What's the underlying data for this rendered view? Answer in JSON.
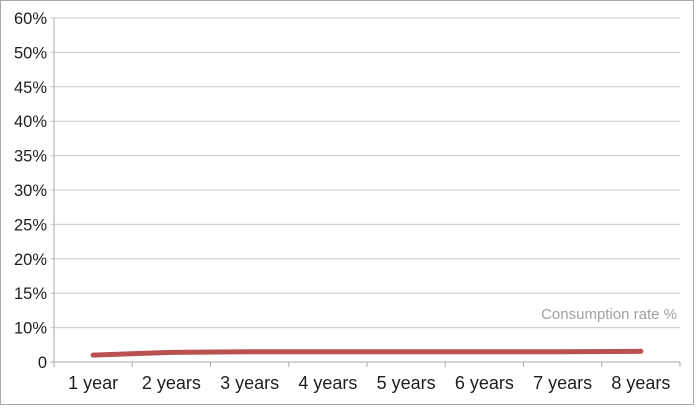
{
  "chart_data": {
    "type": "line",
    "title": "",
    "xlabel": "",
    "ylabel": "",
    "categories": [
      "1 year",
      "2 years",
      "3 years",
      "4 years",
      "5 years",
      "6 years",
      "7 years",
      "8 years"
    ],
    "series": [
      {
        "name": "Consumption rate %",
        "values": [
          2,
          2.8,
          3,
          3,
          3,
          3,
          3,
          3.1
        ]
      }
    ],
    "y_axis": {
      "tick_labels": [
        "60%",
        "50%",
        "45%",
        "40%",
        "35%",
        "30%",
        "25%",
        "20%",
        "15%",
        "10%",
        "0"
      ],
      "top_value": 60,
      "bottom_value": 0,
      "note": "ticks equally spaced as printed; 55% and 5% labels not shown"
    },
    "ylim": [
      0,
      60
    ],
    "grid": "horizontal",
    "legend": {
      "position": "inside-right-above-line",
      "style": "plain gray text"
    },
    "colors": {
      "line": "#b8514f",
      "series_label": "#9fa1a5",
      "axis": "#a8a9ab",
      "gridline": "#cbcccd",
      "tick_text": "#1e1e1e",
      "border": "#a9a9a9",
      "background": "#ffffff"
    }
  }
}
